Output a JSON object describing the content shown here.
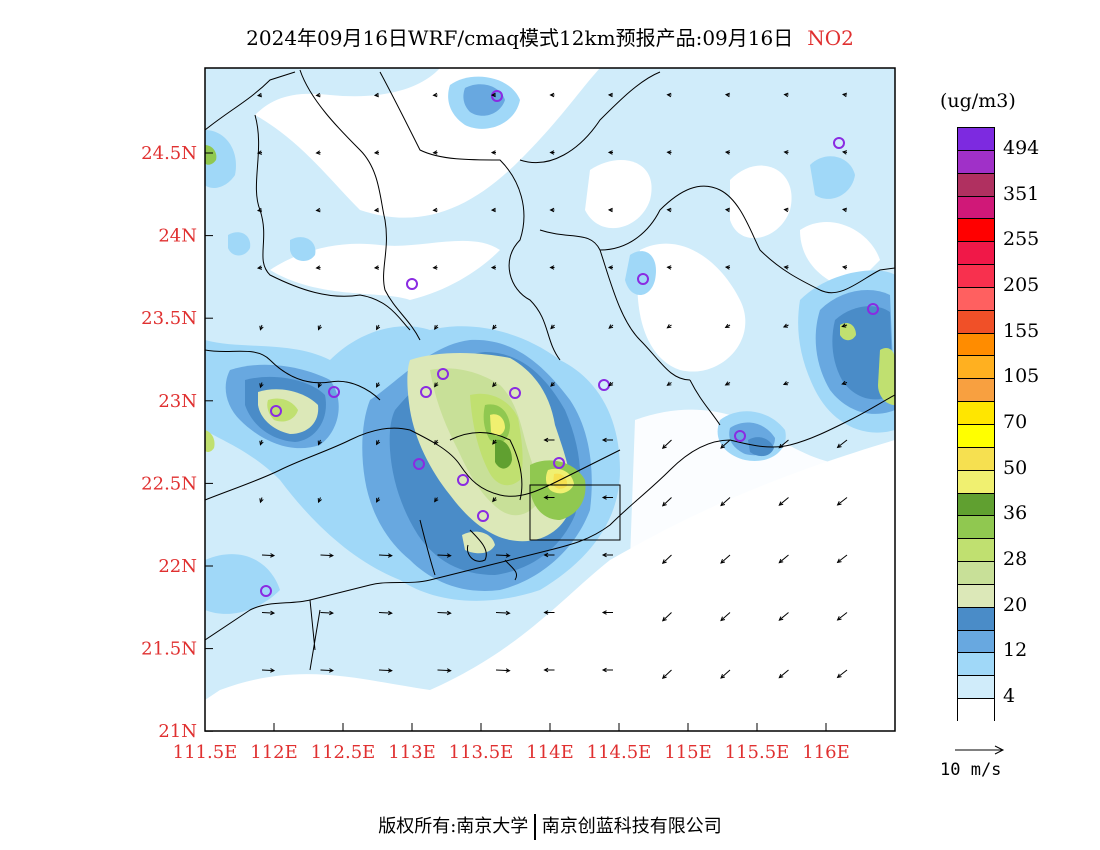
{
  "title": {
    "main": "2024年09月16日WRF/cmaq模式12km预报产品:09月16日",
    "species": "NO2"
  },
  "axes": {
    "lon_ticks": [
      "111.5E",
      "112E",
      "112.5E",
      "113E",
      "113.5E",
      "114E",
      "114.5E",
      "115E",
      "115.5E",
      "116E"
    ],
    "lat_ticks": [
      "24.5N",
      "24N",
      "23.5N",
      "23N",
      "22.5N",
      "22N",
      "21.5N",
      "21N"
    ]
  },
  "colorbar": {
    "unit": "(ug/m3)",
    "colors": [
      "#7d2ae0",
      "#a030c8",
      "#b03060",
      "#d01878",
      "#ff0000",
      "#f01848",
      "#f8304e",
      "#ff6060",
      "#f05028",
      "#ff8c00",
      "#ffb020",
      "#f8a040",
      "#ffe600",
      "#ffff00",
      "#f6e050",
      "#f0f070",
      "#60a030",
      "#90c850",
      "#c0e070",
      "#c8e098",
      "#dce8b8",
      "#4a8cc8",
      "#68a8e0",
      "#a0d8f8",
      "#d0ecfa",
      "#ffffff"
    ],
    "labels": [
      "494",
      "351",
      "255",
      "205",
      "155",
      "105",
      "70",
      "50",
      "36",
      "28",
      "20",
      "12",
      "4"
    ]
  },
  "wind_legend": {
    "label": "10 m/s"
  },
  "credit": {
    "left": "版权所有:南京大学",
    "right": "南京创蓝科技有限公司"
  }
}
